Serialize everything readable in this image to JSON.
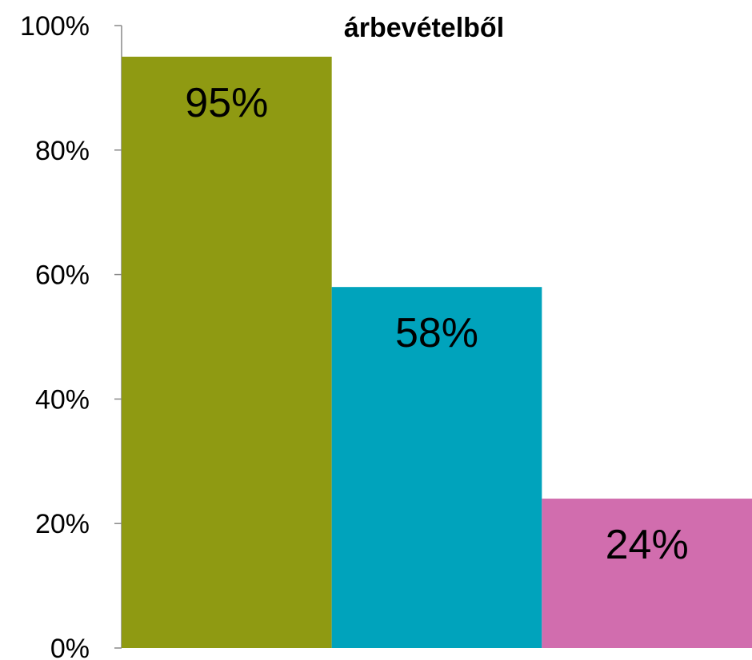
{
  "chart_data": {
    "type": "bar",
    "title": "árbevételből",
    "categories": [
      "",
      "",
      ""
    ],
    "values": [
      95,
      58,
      24
    ],
    "value_labels": [
      "95%",
      "58%",
      "24%"
    ],
    "bar_colors": [
      "#8f9a12",
      "#00a3bc",
      "#d16dae"
    ],
    "ylim": [
      0,
      100
    ],
    "y_ticks": [
      0,
      20,
      40,
      60,
      80,
      100
    ],
    "y_tick_labels": [
      "0%",
      "20%",
      "40%",
      "60%",
      "80%",
      "100%"
    ],
    "xlabel": "",
    "ylabel": "",
    "grid": false,
    "legend": "none"
  }
}
